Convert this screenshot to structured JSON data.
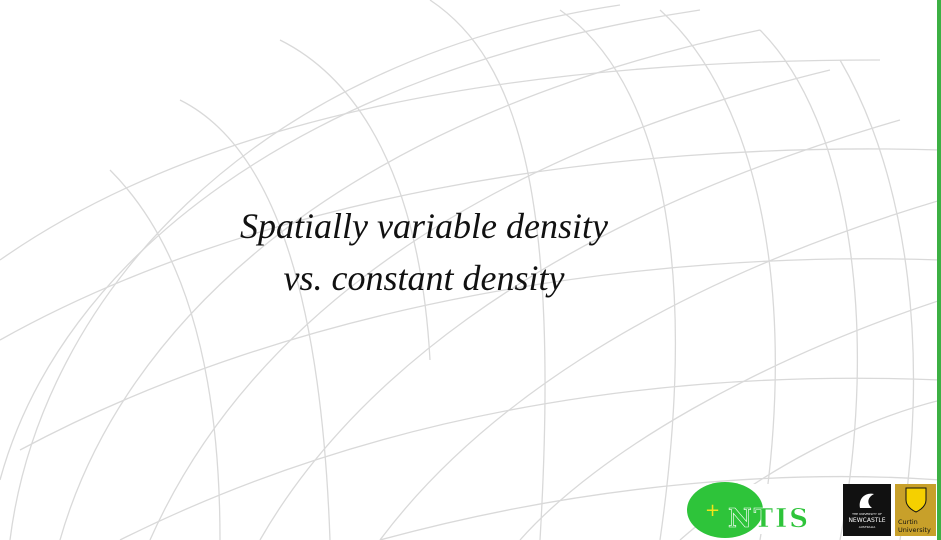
{
  "slide": {
    "title_lines": [
      "Spatially variable density",
      "vs. constant density"
    ],
    "logos": {
      "ntis": {
        "plus": "+",
        "name": "NTIS"
      },
      "newcastle": {
        "small": "THE UNIVERSITY OF",
        "name": "NEWCASTLE",
        "country": "AUSTRALIA"
      },
      "curtin": {
        "line1": "Curtin",
        "line2": "University"
      }
    }
  }
}
